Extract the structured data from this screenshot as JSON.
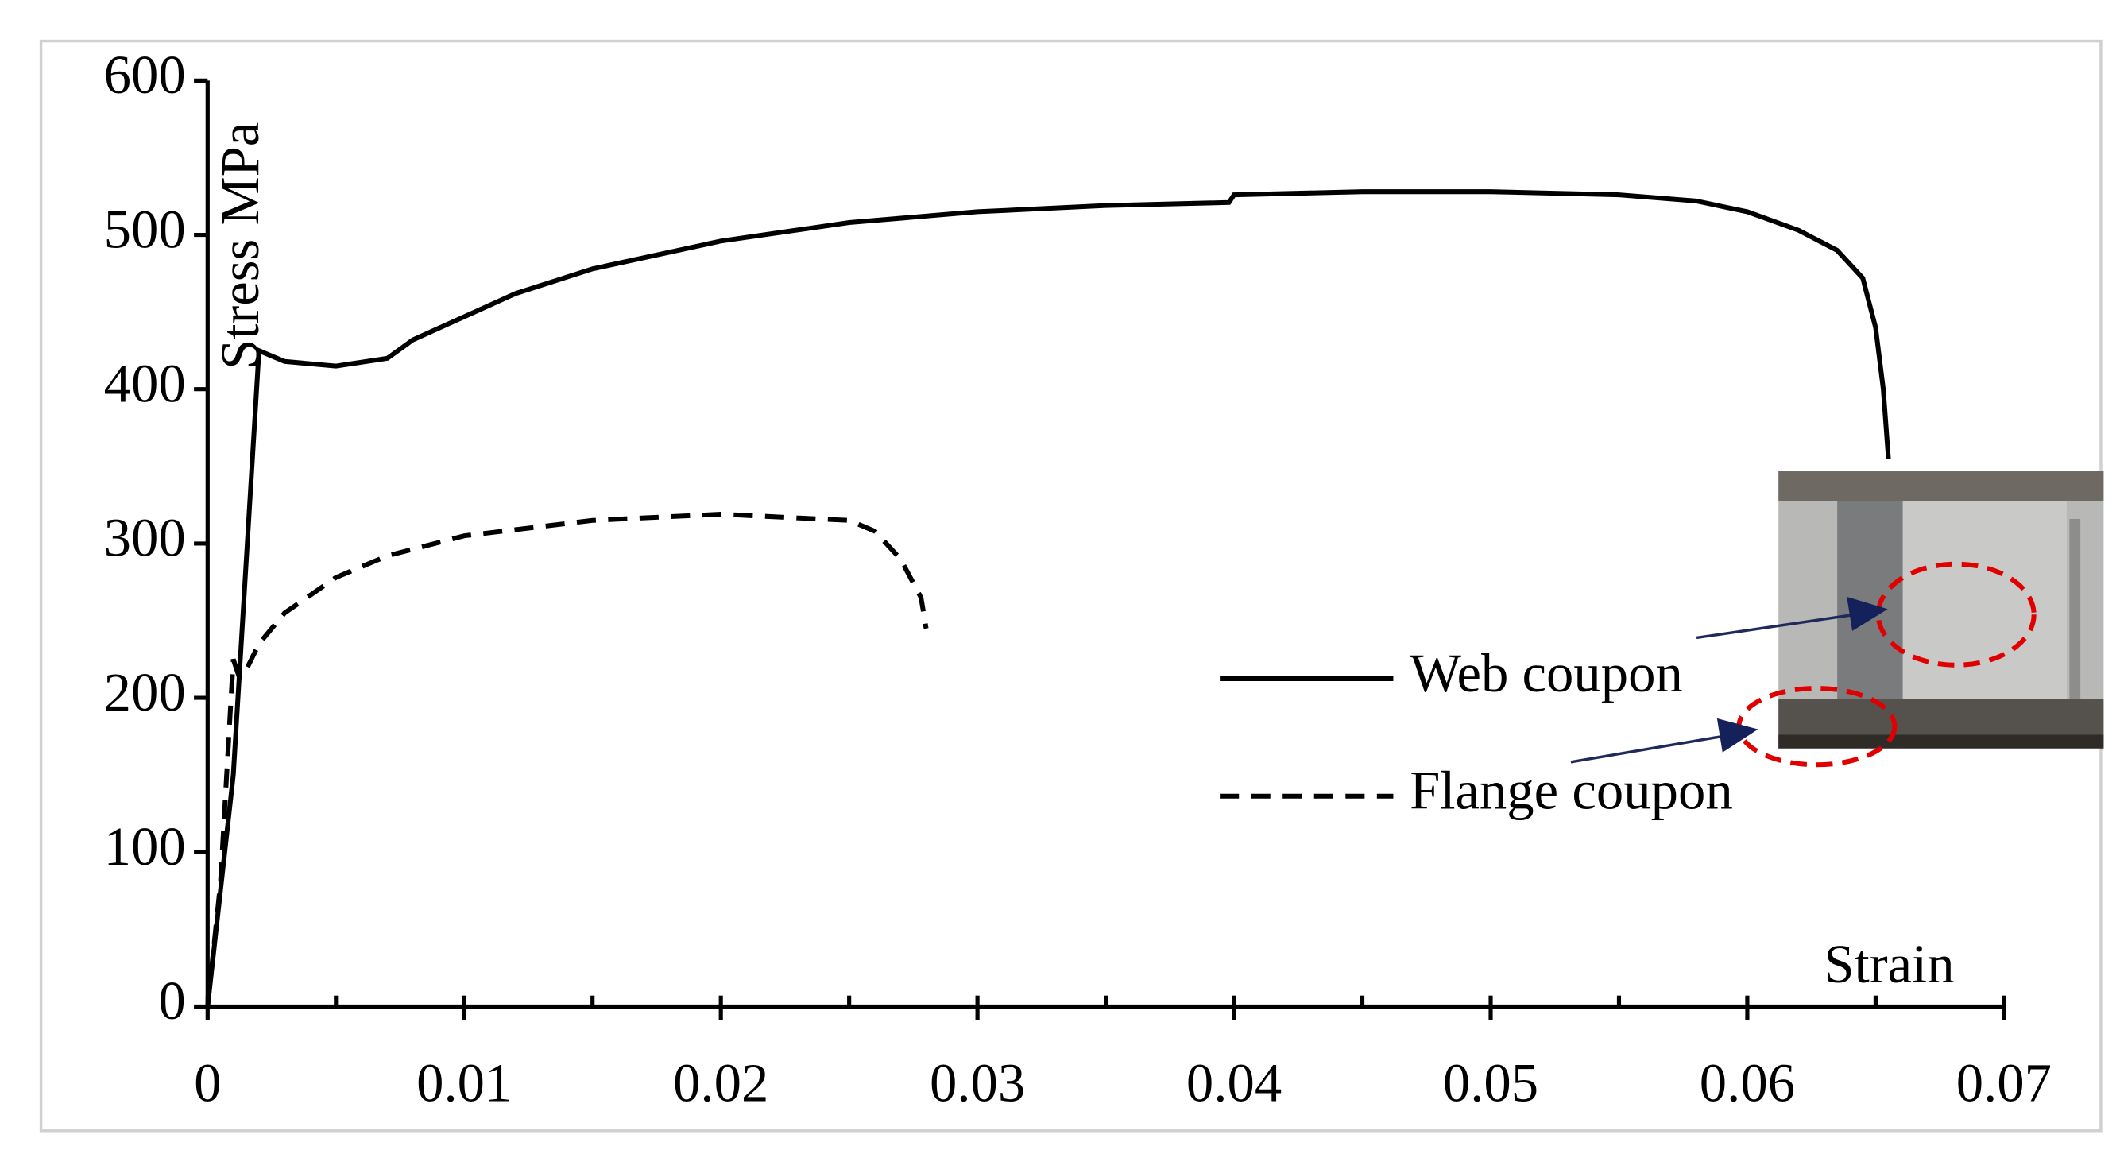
{
  "chart_data": {
    "type": "line",
    "x_label": "Strain",
    "y_label": "Stress MPa",
    "xlim": [
      0,
      0.07
    ],
    "ylim": [
      0,
      600
    ],
    "xticks": [
      0,
      0.01,
      0.02,
      0.03,
      0.04,
      0.05,
      0.06,
      0.07
    ],
    "yticks": [
      0,
      100,
      200,
      300,
      400,
      500,
      600
    ],
    "grid": false,
    "series": [
      {
        "name": "Web coupon",
        "color": "#000000",
        "line_style": "solid",
        "x": [
          0,
          0.001,
          0.002,
          0.003,
          0.005,
          0.007,
          0.008,
          0.01,
          0.012,
          0.015,
          0.02,
          0.025,
          0.03,
          0.035,
          0.0398,
          0.04,
          0.045,
          0.05,
          0.055,
          0.058,
          0.06,
          0.062,
          0.0635,
          0.0645,
          0.065,
          0.0653,
          0.0655
        ],
        "values": [
          0,
          150,
          425,
          418,
          415,
          420,
          432,
          447,
          462,
          478,
          496,
          508,
          515,
          519,
          521,
          526,
          528,
          528,
          526,
          522,
          515,
          503,
          490,
          472,
          440,
          400,
          355
        ]
      },
      {
        "name": "Flange coupon",
        "color": "#000000",
        "line_style": "dashed",
        "x": [
          0,
          0.0005,
          0.001,
          0.0012,
          0.0015,
          0.002,
          0.003,
          0.005,
          0.007,
          0.01,
          0.015,
          0.02,
          0.025,
          0.026,
          0.027,
          0.0278,
          0.028
        ],
        "values": [
          0,
          80,
          225,
          215,
          218,
          235,
          255,
          278,
          292,
          305,
          315,
          319,
          315,
          308,
          290,
          265,
          245
        ]
      }
    ]
  }
}
